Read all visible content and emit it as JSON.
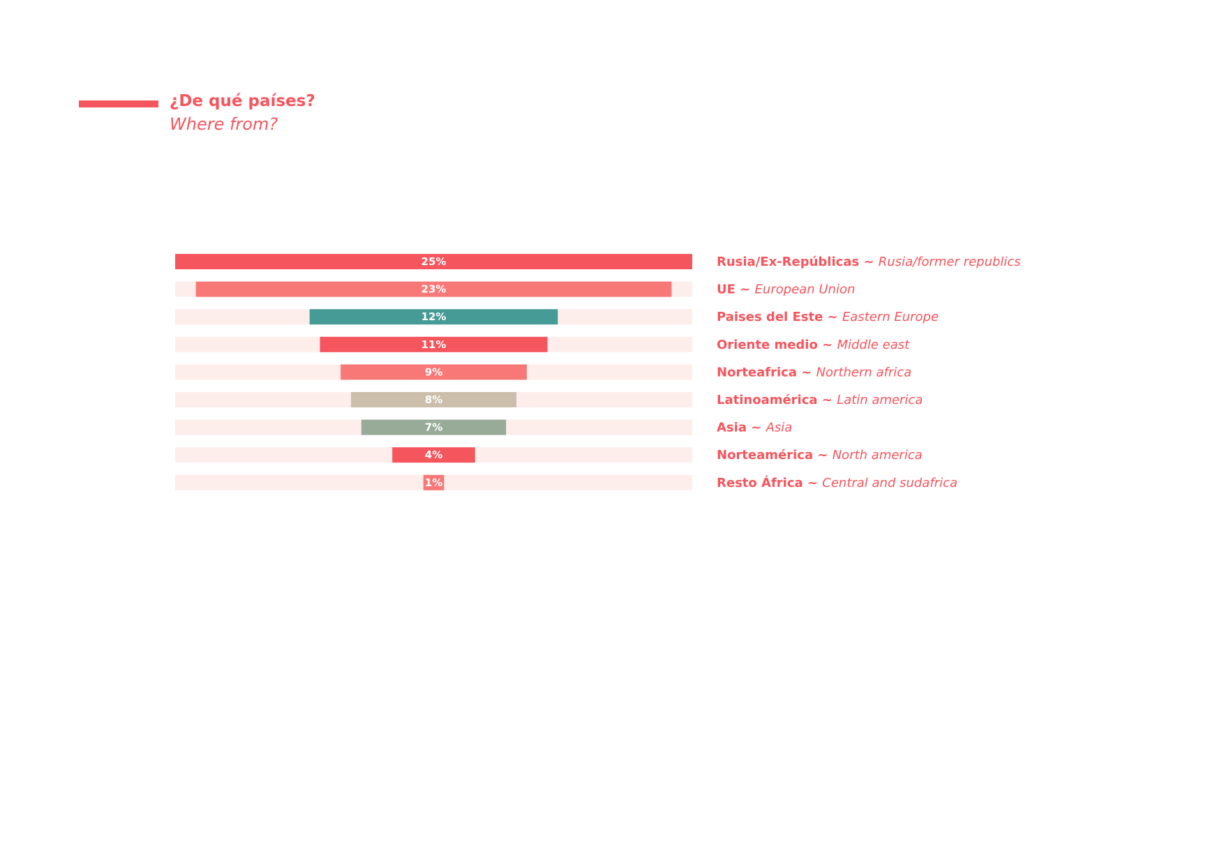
{
  "header": {
    "title": "¿De qué países?",
    "subtitle": "Where from?"
  },
  "colors": {
    "accent": "#f5555d",
    "track": "#fdeeec"
  },
  "chart_data": {
    "type": "bar",
    "orientation": "horizontal-centered",
    "title": "¿De qué países?",
    "subtitle": "Where from?",
    "xlabel": "",
    "ylabel": "",
    "xlim": [
      0,
      25
    ],
    "grid": false,
    "categories": [
      {
        "label_es": "Rusia/Ex-Repúblicas ~",
        "label_en": "Rusia/former republics"
      },
      {
        "label_es": "UE ~",
        "label_en": "European Union"
      },
      {
        "label_es": "Paises del Este ~",
        "label_en": "Eastern Europe"
      },
      {
        "label_es": "Oriente medio ~",
        "label_en": "Middle east"
      },
      {
        "label_es": "Norteafrica ~",
        "label_en": "Northern africa"
      },
      {
        "label_es": "Latinoamérica ~",
        "label_en": "Latin america"
      },
      {
        "label_es": "Asia ~",
        "label_en": "Asia"
      },
      {
        "label_es": "Norteamérica ~",
        "label_en": "North america"
      },
      {
        "label_es": "Resto África ~",
        "label_en": "Central and sudafrica"
      }
    ],
    "values": [
      25,
      23,
      12,
      11,
      9,
      8,
      7,
      4,
      1
    ],
    "value_labels": [
      "25%",
      "23%",
      "12%",
      "11%",
      "9%",
      "8%",
      "7%",
      "4%",
      "1%"
    ],
    "bar_colors": [
      "#f5555d",
      "#f87877",
      "#479b96",
      "#f5555d",
      "#f87877",
      "#cbbfab",
      "#97ab98",
      "#f5555d",
      "#f87877"
    ]
  }
}
